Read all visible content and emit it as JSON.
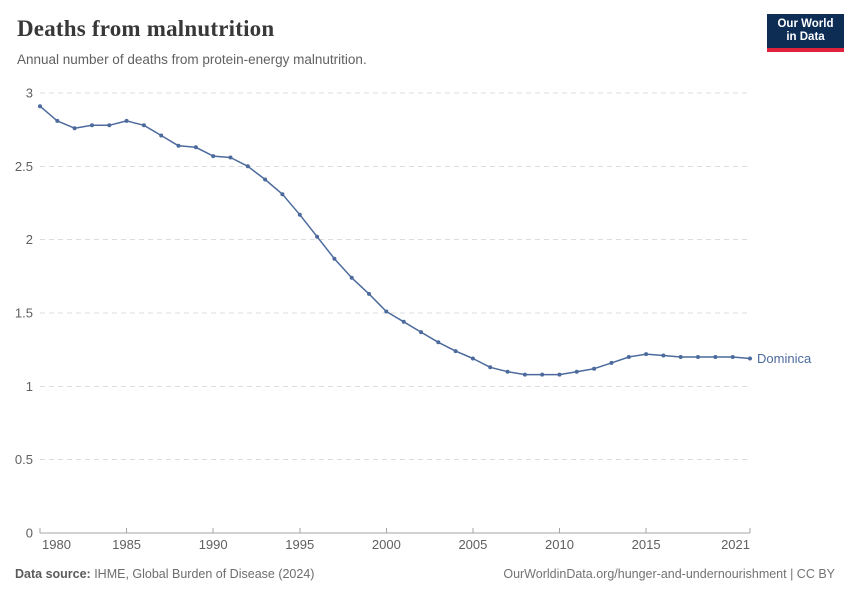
{
  "header": {
    "title": "Deaths from malnutrition",
    "subtitle": "Annual number of deaths from protein-energy malnutrition.",
    "logo": {
      "line1": "Our World",
      "line2": "in Data",
      "bg_color": "#0d2d55",
      "accent_color": "#e0233c"
    }
  },
  "chart_data": {
    "type": "line",
    "title": "Deaths from malnutrition",
    "subtitle": "Annual number of deaths from protein-energy malnutrition.",
    "xlabel": "",
    "ylabel": "",
    "xlim": [
      1980,
      2021
    ],
    "ylim": [
      0,
      3
    ],
    "x_ticks": [
      1980,
      1985,
      1990,
      1995,
      2000,
      2005,
      2010,
      2015,
      2021
    ],
    "y_ticks": [
      0,
      0.5,
      1,
      1.5,
      2,
      2.5,
      3
    ],
    "grid": "horizontal-dashed",
    "legend_position": "end-of-line-label",
    "entity_label": "Dominica",
    "colors": {
      "line": "#4c6a9c",
      "gridline": "#dcdcdc",
      "axis": "#a5a5a5",
      "tick_text": "#606060"
    },
    "series": [
      {
        "name": "Dominica",
        "color": "#4c6a9c",
        "x": [
          1980,
          1981,
          1982,
          1983,
          1984,
          1985,
          1986,
          1987,
          1988,
          1989,
          1990,
          1991,
          1992,
          1993,
          1994,
          1995,
          1996,
          1997,
          1998,
          1999,
          2000,
          2001,
          2002,
          2003,
          2004,
          2005,
          2006,
          2007,
          2008,
          2009,
          2010,
          2011,
          2012,
          2013,
          2014,
          2015,
          2016,
          2017,
          2018,
          2019,
          2020,
          2021
        ],
        "values": [
          2.91,
          2.81,
          2.76,
          2.78,
          2.78,
          2.81,
          2.78,
          2.71,
          2.64,
          2.63,
          2.57,
          2.56,
          2.5,
          2.41,
          2.31,
          2.17,
          2.02,
          1.87,
          1.74,
          1.63,
          1.51,
          1.44,
          1.37,
          1.3,
          1.24,
          1.19,
          1.13,
          1.1,
          1.08,
          1.08,
          1.08,
          1.1,
          1.12,
          1.16,
          1.2,
          1.22,
          1.21,
          1.2,
          1.2,
          1.2,
          1.2,
          1.19
        ]
      }
    ]
  },
  "footer": {
    "datasource_label": "Data source:",
    "datasource_value": " IHME, Global Burden of Disease (2024)",
    "attribution": "OurWorldinData.org/hunger-and-undernourishment | CC BY"
  }
}
